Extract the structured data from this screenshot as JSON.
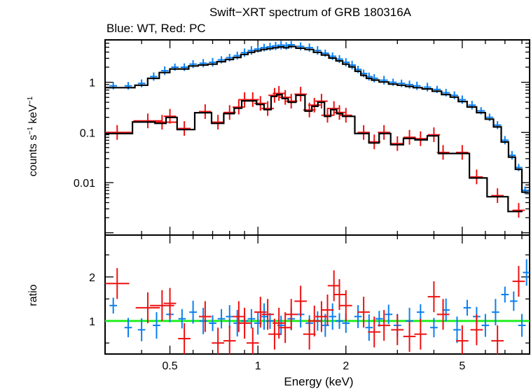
{
  "colors": {
    "wt": "#0a7ff0",
    "pc": "#ee1111",
    "model": "#000000",
    "unity": "#22ee22"
  },
  "chart_data": [
    {
      "type": "scatter",
      "title": "Swift−XRT spectrum of GRB 180316A",
      "subtitle": "Blue: WT, Red: PC",
      "ylabel": "counts s",
      "ylabel_exp": "−1",
      "ylabel_unit": " keV",
      "xscale": "log",
      "yscale": "log",
      "xlim": [
        0.3,
        8.5
      ],
      "ylim": [
        0.0009,
        7
      ],
      "yticks": [
        {
          "value": 0.01,
          "label": "0.01"
        },
        {
          "value": 0.1,
          "label": "0.1"
        },
        {
          "value": 1,
          "label": "1"
        }
      ],
      "series": [
        {
          "name": "WT",
          "points": [
            [
              0.32,
              0.85
            ],
            [
              0.36,
              0.85
            ],
            [
              0.4,
              0.95
            ],
            [
              0.44,
              1.3
            ],
            [
              0.48,
              1.7
            ],
            [
              0.52,
              2.0
            ],
            [
              0.56,
              2.0
            ],
            [
              0.6,
              2.3
            ],
            [
              0.65,
              2.4
            ],
            [
              0.7,
              2.5
            ],
            [
              0.75,
              2.8
            ],
            [
              0.8,
              3.1
            ],
            [
              0.85,
              3.4
            ],
            [
              0.9,
              3.9
            ],
            [
              0.95,
              4.3
            ],
            [
              1.0,
              4.6
            ],
            [
              1.05,
              4.9
            ],
            [
              1.1,
              5.1
            ],
            [
              1.15,
              5.3
            ],
            [
              1.2,
              5.5
            ],
            [
              1.25,
              5.3
            ],
            [
              1.3,
              5.6
            ],
            [
              1.4,
              5.2
            ],
            [
              1.5,
              4.9
            ],
            [
              1.6,
              4.3
            ],
            [
              1.7,
              3.8
            ],
            [
              1.8,
              3.3
            ],
            [
              1.9,
              2.9
            ],
            [
              2.0,
              2.5
            ],
            [
              2.1,
              2.2
            ],
            [
              2.2,
              1.8
            ],
            [
              2.3,
              1.5
            ],
            [
              2.4,
              1.3
            ],
            [
              2.5,
              1.2
            ],
            [
              2.7,
              1.1
            ],
            [
              2.9,
              1.0
            ],
            [
              3.1,
              0.95
            ],
            [
              3.3,
              0.9
            ],
            [
              3.5,
              0.85
            ],
            [
              3.8,
              0.8
            ],
            [
              4.1,
              0.72
            ],
            [
              4.4,
              0.62
            ],
            [
              4.7,
              0.55
            ],
            [
              5.0,
              0.45
            ],
            [
              5.4,
              0.35
            ],
            [
              5.8,
              0.27
            ],
            [
              6.2,
              0.2
            ],
            [
              6.6,
              0.14
            ],
            [
              7.0,
              0.07
            ],
            [
              7.4,
              0.035
            ],
            [
              7.8,
              0.02
            ],
            [
              8.2,
              0.007
            ]
          ]
        },
        {
          "name": "PC",
          "points": [
            [
              0.33,
              0.1
            ],
            [
              0.42,
              0.17
            ],
            [
              0.47,
              0.16
            ],
            [
              0.5,
              0.21
            ],
            [
              0.56,
              0.12
            ],
            [
              0.66,
              0.26
            ],
            [
              0.73,
              0.16
            ],
            [
              0.8,
              0.25
            ],
            [
              0.86,
              0.32
            ],
            [
              0.9,
              0.45
            ],
            [
              0.96,
              0.45
            ],
            [
              1.02,
              0.38
            ],
            [
              1.08,
              0.3
            ],
            [
              1.14,
              0.55
            ],
            [
              1.18,
              0.6
            ],
            [
              1.24,
              0.5
            ],
            [
              1.3,
              0.42
            ],
            [
              1.4,
              0.58
            ],
            [
              1.5,
              0.28
            ],
            [
              1.56,
              0.35
            ],
            [
              1.65,
              0.42
            ],
            [
              1.73,
              0.22
            ],
            [
              1.82,
              0.3
            ],
            [
              1.9,
              0.25
            ],
            [
              2.0,
              0.22
            ],
            [
              2.3,
              0.1
            ],
            [
              2.5,
              0.065
            ],
            [
              2.7,
              0.1
            ],
            [
              3.0,
              0.06
            ],
            [
              3.3,
              0.08
            ],
            [
              3.6,
              0.075
            ],
            [
              4.0,
              0.09
            ],
            [
              4.3,
              0.04
            ],
            [
              5.0,
              0.04
            ],
            [
              5.6,
              0.013
            ],
            [
              6.6,
              0.0055
            ],
            [
              7.8,
              0.0028
            ]
          ]
        }
      ]
    },
    {
      "type": "scatter",
      "ylabel": "ratio",
      "xlabel": "Energy (keV)",
      "xscale": "log",
      "xlim": [
        0.3,
        8.5
      ],
      "ylim": [
        0.25,
        2.95
      ],
      "reference_line": 1,
      "yticks": [
        {
          "value": 1,
          "label": "1"
        },
        {
          "value": 2,
          "label": "2"
        }
      ],
      "xticks": [
        {
          "value": 0.5,
          "label": "0.5"
        },
        {
          "value": 1,
          "label": "1"
        },
        {
          "value": 2,
          "label": "2"
        },
        {
          "value": 5,
          "label": "5"
        }
      ],
      "series": [
        {
          "name": "WT",
          "points": [
            [
              0.32,
              1.35
            ],
            [
              0.36,
              0.85
            ],
            [
              0.4,
              0.8
            ],
            [
              0.45,
              0.9
            ],
            [
              0.5,
              1.15
            ],
            [
              0.55,
              1.05
            ],
            [
              0.6,
              1.2
            ],
            [
              0.65,
              1.0
            ],
            [
              0.7,
              0.95
            ],
            [
              0.75,
              1.05
            ],
            [
              0.8,
              1.1
            ],
            [
              0.85,
              0.95
            ],
            [
              0.9,
              1.0
            ],
            [
              0.95,
              1.05
            ],
            [
              1.0,
              0.95
            ],
            [
              1.05,
              1.1
            ],
            [
              1.1,
              1.0
            ],
            [
              1.2,
              0.9
            ],
            [
              1.3,
              1.05
            ],
            [
              1.4,
              1.15
            ],
            [
              1.5,
              0.95
            ],
            [
              1.6,
              1.0
            ],
            [
              1.7,
              0.9
            ],
            [
              1.8,
              1.1
            ],
            [
              1.9,
              1.0
            ],
            [
              2.0,
              0.95
            ],
            [
              2.2,
              1.1
            ],
            [
              2.4,
              0.85
            ],
            [
              2.6,
              1.05
            ],
            [
              2.8,
              1.15
            ],
            [
              3.0,
              0.9
            ],
            [
              3.3,
              1.0
            ],
            [
              3.6,
              1.2
            ],
            [
              4.0,
              0.85
            ],
            [
              4.4,
              1.25
            ],
            [
              4.8,
              0.8
            ],
            [
              5.2,
              1.3
            ],
            [
              5.6,
              1.1
            ],
            [
              6.0,
              0.9
            ],
            [
              6.5,
              1.2
            ],
            [
              7.0,
              1.6
            ],
            [
              7.5,
              1.45
            ],
            [
              8.0,
              0.9
            ],
            [
              8.3,
              2.1
            ]
          ]
        },
        {
          "name": "PC",
          "points": [
            [
              0.33,
              1.85
            ],
            [
              0.42,
              1.3
            ],
            [
              0.47,
              1.35
            ],
            [
              0.5,
              1.4
            ],
            [
              0.56,
              0.6
            ],
            [
              0.66,
              1.1
            ],
            [
              0.73,
              0.5
            ],
            [
              0.8,
              0.55
            ],
            [
              0.86,
              1.1
            ],
            [
              0.9,
              0.95
            ],
            [
              0.96,
              0.5
            ],
            [
              1.02,
              1.2
            ],
            [
              1.08,
              1.15
            ],
            [
              1.14,
              0.7
            ],
            [
              1.18,
              0.95
            ],
            [
              1.24,
              0.85
            ],
            [
              1.3,
              1.15
            ],
            [
              1.4,
              1.45
            ],
            [
              1.5,
              0.7
            ],
            [
              1.56,
              1.0
            ],
            [
              1.65,
              1.1
            ],
            [
              1.73,
              1.25
            ],
            [
              1.82,
              1.8
            ],
            [
              1.9,
              1.6
            ],
            [
              2.0,
              1.35
            ],
            [
              2.3,
              1.2
            ],
            [
              2.5,
              0.75
            ],
            [
              2.7,
              0.9
            ],
            [
              3.0,
              0.8
            ],
            [
              3.3,
              0.65
            ],
            [
              3.6,
              0.7
            ],
            [
              4.0,
              1.55
            ],
            [
              4.3,
              1.15
            ],
            [
              5.0,
              0.55
            ],
            [
              5.6,
              0.8
            ],
            [
              6.6,
              0.55
            ],
            [
              7.8,
              1.9
            ]
          ]
        }
      ]
    }
  ]
}
